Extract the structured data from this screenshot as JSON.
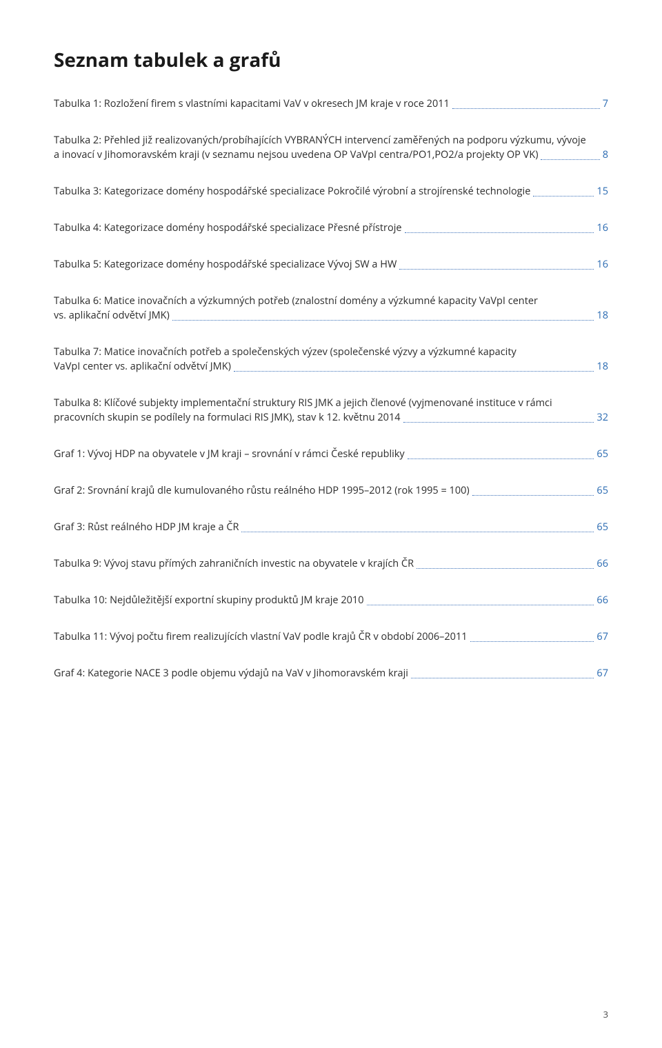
{
  "title": "Seznam tabulek a grafů",
  "page_number": "3",
  "colors": {
    "leader": "#3a6fb7",
    "pagenum": "#2b6bb2",
    "text": "#2b2b2b",
    "title": "#1a1a1a"
  },
  "entries": [
    {
      "lines": [
        "Tabulka 1: Rozložení firem s vlastními kapacitami VaV v okresech JM kraje v roce 2011"
      ],
      "page": "7"
    },
    {
      "lines": [
        "Tabulka 2: Přehled již realizovaných/probíhajících VYBRANÝCH intervencí zaměřených na podporu výzkumu, vývoje",
        "a inovací v Jihomoravském kraji (v seznamu nejsou uvedena OP VaVpI centra/PO1,PO2/a projekty OP VK)"
      ],
      "page": "8"
    },
    {
      "lines": [
        "Tabulka 3: Kategorizace domény hospodářské specializace Pokročilé výrobní a strojírenské technologie"
      ],
      "page": "15"
    },
    {
      "lines": [
        "Tabulka 4: Kategorizace domény hospodářské specializace Přesné přístroje"
      ],
      "page": "16"
    },
    {
      "lines": [
        "Tabulka 5: Kategorizace domény hospodářské specializace Vývoj SW a HW"
      ],
      "page": "16"
    },
    {
      "lines": [
        "Tabulka 6: Matice inovačních a výzkumných potřeb (znalostní domény a výzkumné kapacity VaVpI center",
        "vs. aplikační odvětví JMK)"
      ],
      "page": "18"
    },
    {
      "lines": [
        "Tabulka 7: Matice inovačních potřeb a společenských výzev (společenské výzvy a výzkumné kapacity",
        "VaVpI center vs. aplikační odvětví JMK)"
      ],
      "page": "18"
    },
    {
      "lines": [
        "Tabulka 8: Klíčové subjekty implementační struktury RIS JMK a jejich členové (vyjmenované instituce v rámci",
        "pracovních skupin se podílely na formulaci RIS JMK), stav k 12. květnu 2014"
      ],
      "page": "32"
    },
    {
      "lines": [
        "Graf 1: Vývoj HDP na obyvatele v JM kraji – srovnání v rámci České republiky"
      ],
      "page": "65"
    },
    {
      "lines": [
        "Graf 2: Srovnání krajů dle kumulovaného růstu reálného HDP 1995–2012 (rok 1995 = 100)"
      ],
      "page": "65"
    },
    {
      "lines": [
        "Graf 3: Růst reálného HDP JM kraje a ČR"
      ],
      "page": "65"
    },
    {
      "lines": [
        "Tabulka 9: Vývoj stavu přímých zahraničních investic na obyvatele v krajích ČR"
      ],
      "page": "66"
    },
    {
      "lines": [
        "Tabulka 10: Nejdůležitější exportní skupiny produktů JM kraje 2010"
      ],
      "page": "66"
    },
    {
      "lines": [
        "Tabulka 11: Vývoj počtu firem realizujících vlastní VaV podle krajů ČR v období 2006–2011"
      ],
      "page": "67"
    },
    {
      "lines": [
        "Graf 4: Kategorie NACE 3 podle objemu výdajů na VaV v Jihomoravském kraji"
      ],
      "page": "67"
    }
  ]
}
